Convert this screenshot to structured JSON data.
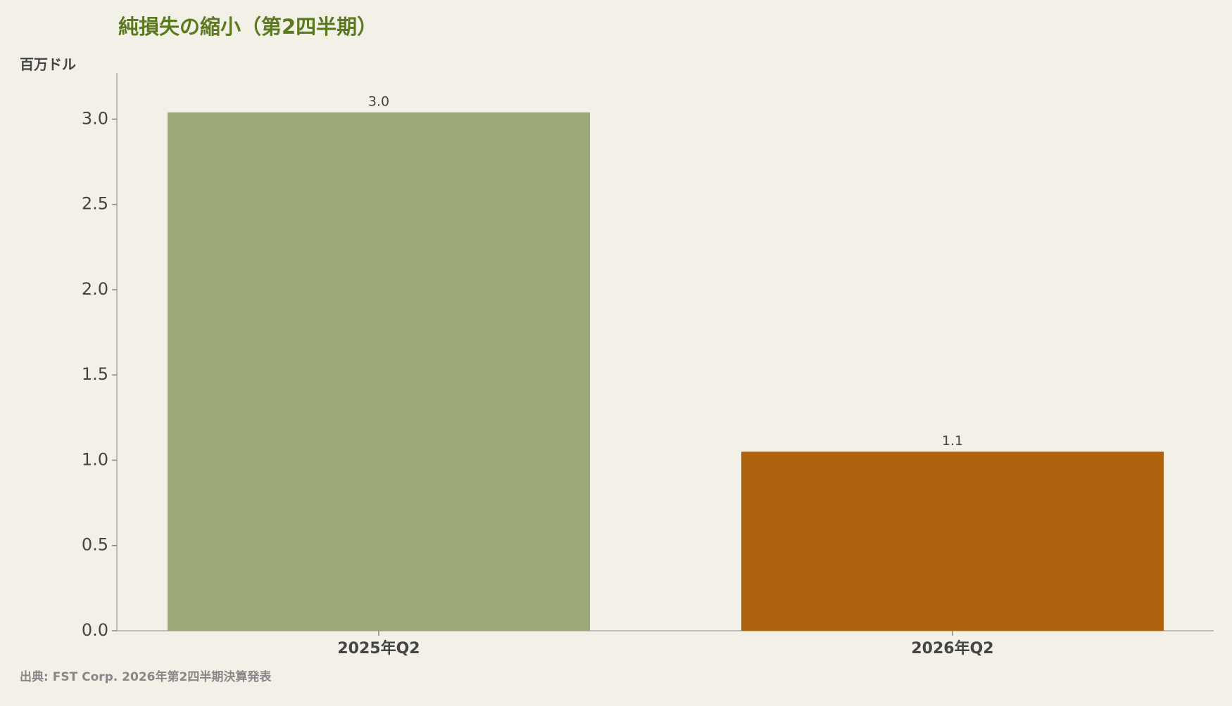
{
  "chart_data": {
    "type": "bar",
    "title": "純損失の縮小（第2四半期）",
    "y_label": "百万ドル",
    "source": "出典: FST Corp. 2026年第2四半期決算発表",
    "categories": [
      "2025年Q2",
      "2026年Q2"
    ],
    "values": [
      3.04,
      1.05
    ],
    "value_labels": [
      "3.0",
      "1.1"
    ],
    "colors": [
      "#9ca977",
      "#b1620f"
    ],
    "ylim": [
      0,
      3.27
    ],
    "yticks": [
      {
        "value": 0,
        "label": "0.0"
      },
      {
        "value": 0.5,
        "label": "0.5"
      },
      {
        "value": 1,
        "label": "1.0"
      },
      {
        "value": 1.5,
        "label": "1.5"
      },
      {
        "value": 2,
        "label": "2.0"
      },
      {
        "value": 2.5,
        "label": "2.5"
      },
      {
        "value": 3,
        "label": "3.0"
      }
    ],
    "grid": false
  }
}
